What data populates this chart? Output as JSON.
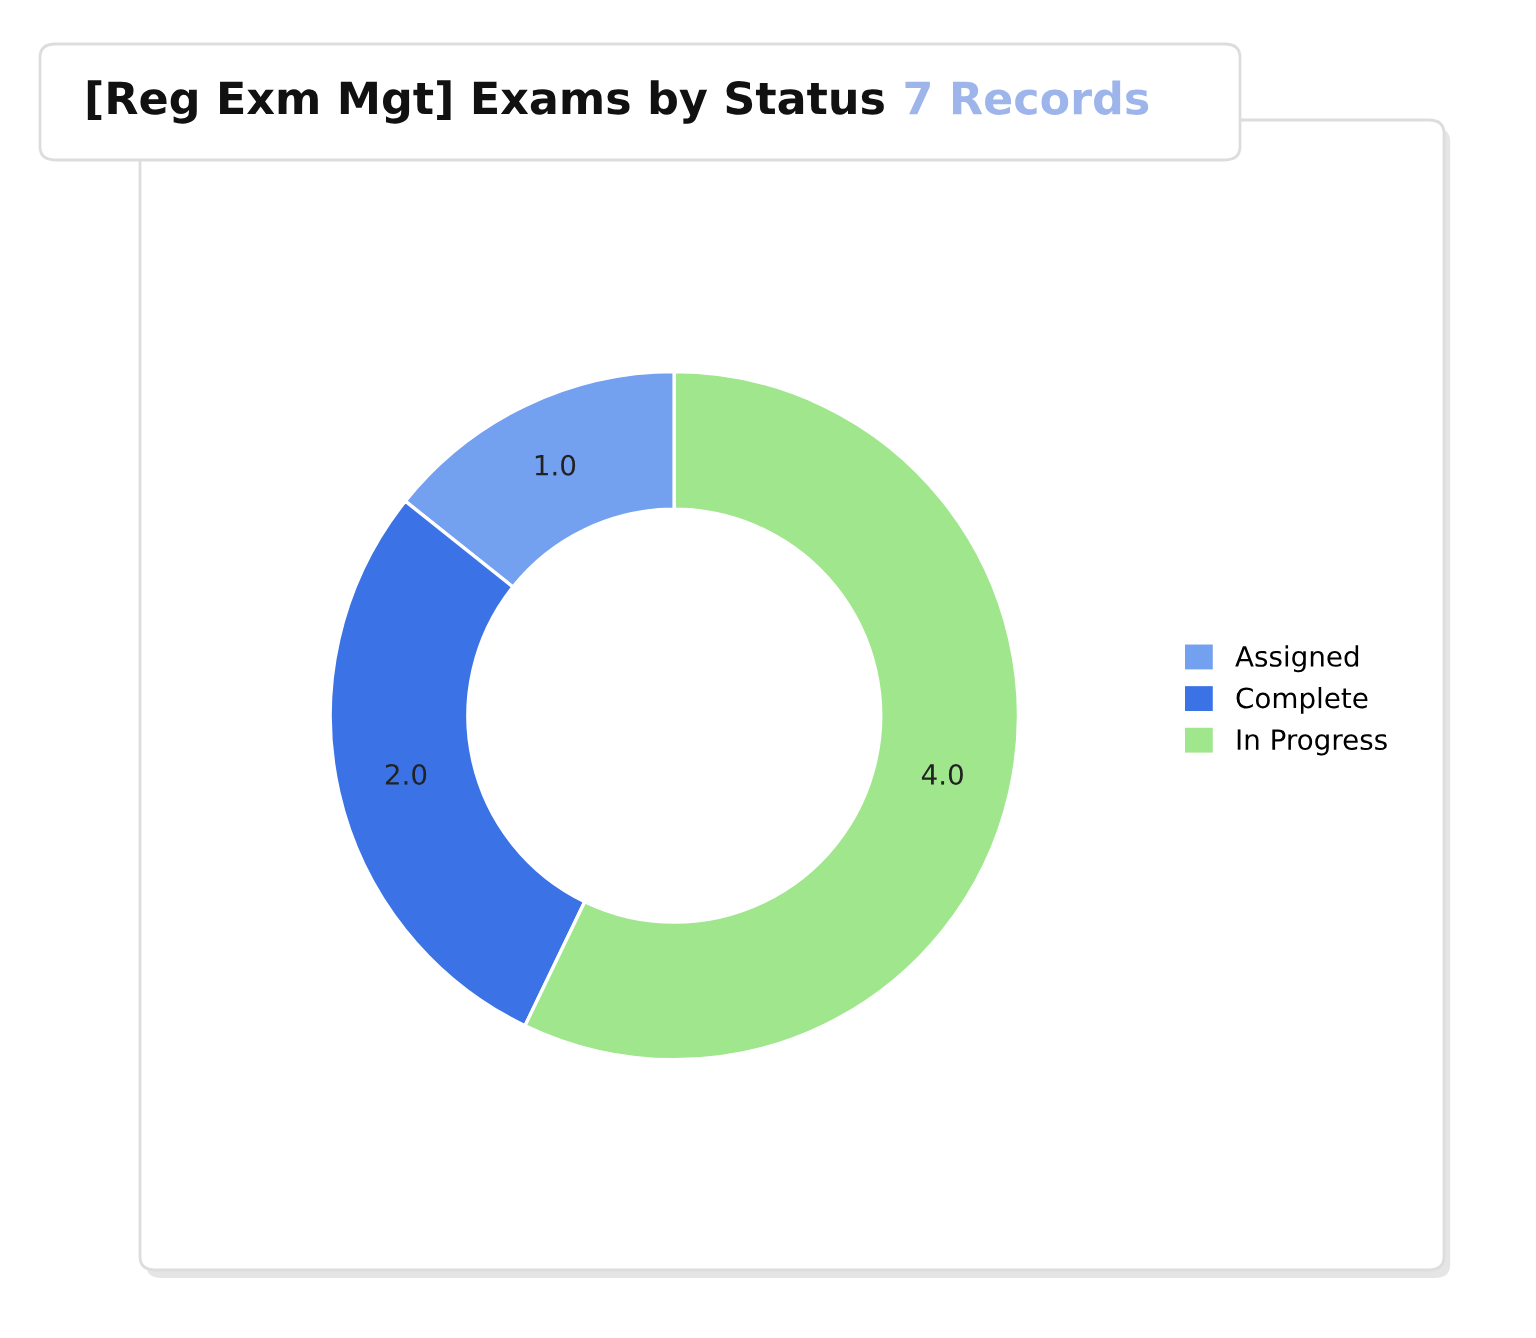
{
  "chart_data": {
    "type": "donut",
    "title": "[Reg Exm Mgt] Exams by Status",
    "subtitle": "7 Records",
    "categories": [
      "Assigned",
      "Complete",
      "In Progress"
    ],
    "values": [
      1,
      2,
      4
    ],
    "colors": [
      "#74a0f0",
      "#3b73e6",
      "#a0e68c"
    ],
    "value_labels": [
      "1.0",
      "2.0",
      "4.0"
    ],
    "legend": "right"
  }
}
